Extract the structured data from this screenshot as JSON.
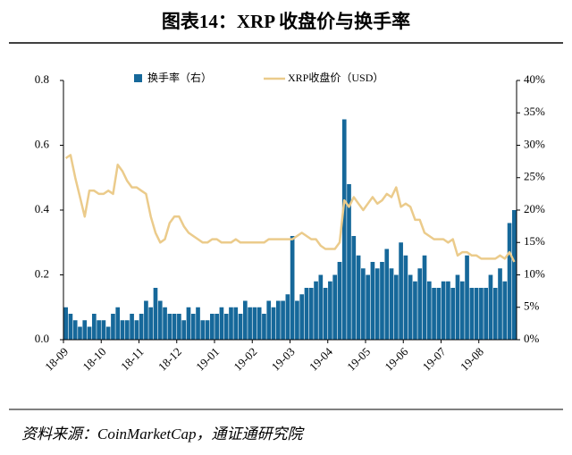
{
  "title": "图表14：XRP 收盘价与换手率",
  "source": "资料来源：CoinMarketCap，通证通研究院",
  "chart_data": {
    "type": "combo",
    "categories": [
      "18-09",
      null,
      null,
      null,
      null,
      null,
      null,
      null,
      "18-10",
      null,
      null,
      null,
      null,
      null,
      null,
      null,
      "18-11",
      null,
      null,
      null,
      null,
      null,
      null,
      null,
      "18-12",
      null,
      null,
      null,
      null,
      null,
      null,
      null,
      "19-01",
      null,
      null,
      null,
      null,
      null,
      null,
      null,
      "19-02",
      null,
      null,
      null,
      null,
      null,
      null,
      null,
      "19-03",
      null,
      null,
      null,
      null,
      null,
      null,
      null,
      "19-04",
      null,
      null,
      null,
      null,
      null,
      null,
      null,
      "19-05",
      null,
      null,
      null,
      null,
      null,
      null,
      null,
      "19-06",
      null,
      null,
      null,
      null,
      null,
      null,
      null,
      "19-07",
      null,
      null,
      null,
      null,
      null,
      null,
      null,
      "19-08",
      null,
      null,
      null,
      null,
      null,
      null,
      null
    ],
    "series": [
      {
        "name": "换手率（右）",
        "type": "bar",
        "axis": "y2",
        "color": "#16689a",
        "values": [
          5,
          4,
          3,
          2,
          3,
          2,
          4,
          3,
          3,
          2,
          4,
          5,
          3,
          3,
          4,
          3,
          4,
          6,
          5,
          8,
          6,
          5,
          4,
          4,
          4,
          3,
          5,
          4,
          5,
          3,
          3,
          4,
          4,
          5,
          4,
          5,
          5,
          4,
          6,
          5,
          5,
          5,
          4,
          6,
          5,
          6,
          6,
          7,
          16,
          6,
          7,
          8,
          8,
          9,
          10,
          8,
          9,
          10,
          12,
          34,
          24,
          16,
          13,
          11,
          10,
          12,
          11,
          12,
          14,
          11,
          10,
          15,
          13,
          10,
          9,
          11,
          13,
          9,
          8,
          8,
          9,
          9,
          8,
          10,
          9,
          13,
          8,
          8,
          8,
          8,
          10,
          8,
          11,
          9,
          18,
          20
        ]
      },
      {
        "name": "XRP收盘价（USD）",
        "type": "line",
        "color": "#ebcb8b",
        "values": [
          0.56,
          0.57,
          0.5,
          0.44,
          0.38,
          0.46,
          0.46,
          0.45,
          0.45,
          0.46,
          0.45,
          0.54,
          0.52,
          0.49,
          0.47,
          0.47,
          0.46,
          0.45,
          0.38,
          0.33,
          0.3,
          0.31,
          0.36,
          0.38,
          0.38,
          0.35,
          0.33,
          0.32,
          0.31,
          0.3,
          0.3,
          0.31,
          0.31,
          0.3,
          0.3,
          0.3,
          0.31,
          0.3,
          0.3,
          0.3,
          0.3,
          0.3,
          0.3,
          0.31,
          0.31,
          0.31,
          0.31,
          0.31,
          0.31,
          0.32,
          0.33,
          0.32,
          0.31,
          0.31,
          0.29,
          0.28,
          0.28,
          0.28,
          0.3,
          0.43,
          0.41,
          0.44,
          0.42,
          0.4,
          0.42,
          0.44,
          0.42,
          0.43,
          0.45,
          0.44,
          0.47,
          0.41,
          0.42,
          0.41,
          0.37,
          0.37,
          0.33,
          0.32,
          0.31,
          0.31,
          0.31,
          0.3,
          0.31,
          0.26,
          0.27,
          0.27,
          0.26,
          0.26,
          0.25,
          0.25,
          0.25,
          0.25,
          0.26,
          0.25,
          0.27,
          0.24
        ]
      }
    ],
    "ylim": [
      0,
      0.8
    ],
    "yticks": [
      {
        "value": 0,
        "label": "0.0"
      },
      0.2,
      0.4,
      0.6,
      0.8
    ],
    "y2lim": [
      0,
      40
    ],
    "y2ticks": [
      {
        "value": 0,
        "label": "0%"
      },
      {
        "value": 5,
        "label": "5%"
      },
      {
        "value": 10,
        "label": "10%"
      },
      {
        "value": 15,
        "label": "15%"
      },
      {
        "value": 20,
        "label": "20%"
      },
      {
        "value": 25,
        "label": "25%"
      },
      {
        "value": 30,
        "label": "30%"
      },
      {
        "value": 35,
        "label": "35%"
      },
      {
        "value": 40,
        "label": "40%"
      }
    ],
    "legend": "top"
  }
}
